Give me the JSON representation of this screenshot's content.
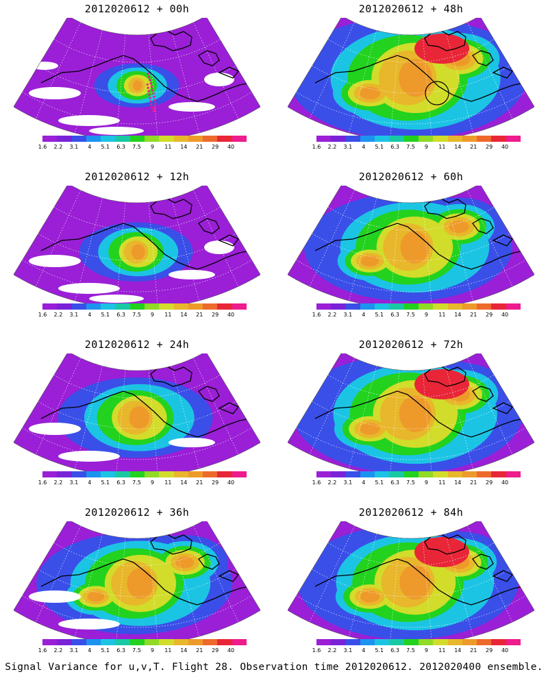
{
  "figure": {
    "caption": "Signal Variance for u,v,T. Flight 28. Observation time 2012020612. 2012020400 ensemble."
  },
  "colorbar": {
    "labels": [
      "1.6",
      "2.2",
      "3.1",
      "4",
      "5.1",
      "6.3",
      "7.5",
      "9",
      "11",
      "14",
      "21",
      "29",
      "40"
    ],
    "colors": [
      "#9a1fd6",
      "#7a22d8",
      "#3a4fe8",
      "#1d93f0",
      "#1cc4e4",
      "#18c9a4",
      "#22d21e",
      "#8fdb25",
      "#d2dc2a",
      "#e8b72b",
      "#ee9a2b",
      "#ee6a2c",
      "#e82638",
      "#ee1c8c"
    ]
  },
  "panels": [
    {
      "title": "2012020612 + 00h",
      "lead": 0,
      "intensity": 0.08,
      "white_gaps": 0.9,
      "circle": false
    },
    {
      "title": "2012020612 + 48h",
      "lead": 48,
      "intensity": 0.82,
      "white_gaps": 0.0,
      "circle": true
    },
    {
      "title": "2012020612 + 12h",
      "lead": 12,
      "intensity": 0.22,
      "white_gaps": 0.75,
      "circle": false
    },
    {
      "title": "2012020612 + 60h",
      "lead": 60,
      "intensity": 0.68,
      "white_gaps": 0.0,
      "circle": false
    },
    {
      "title": "2012020612 + 24h",
      "lead": 24,
      "intensity": 0.42,
      "white_gaps": 0.45,
      "circle": false
    },
    {
      "title": "2012020612 + 72h",
      "lead": 72,
      "intensity": 0.78,
      "white_gaps": 0.0,
      "circle": false
    },
    {
      "title": "2012020612 + 36h",
      "lead": 36,
      "intensity": 0.62,
      "white_gaps": 0.2,
      "circle": false
    },
    {
      "title": "2012020612 + 84h",
      "lead": 84,
      "intensity": 0.74,
      "white_gaps": 0.0,
      "circle": false
    }
  ]
}
